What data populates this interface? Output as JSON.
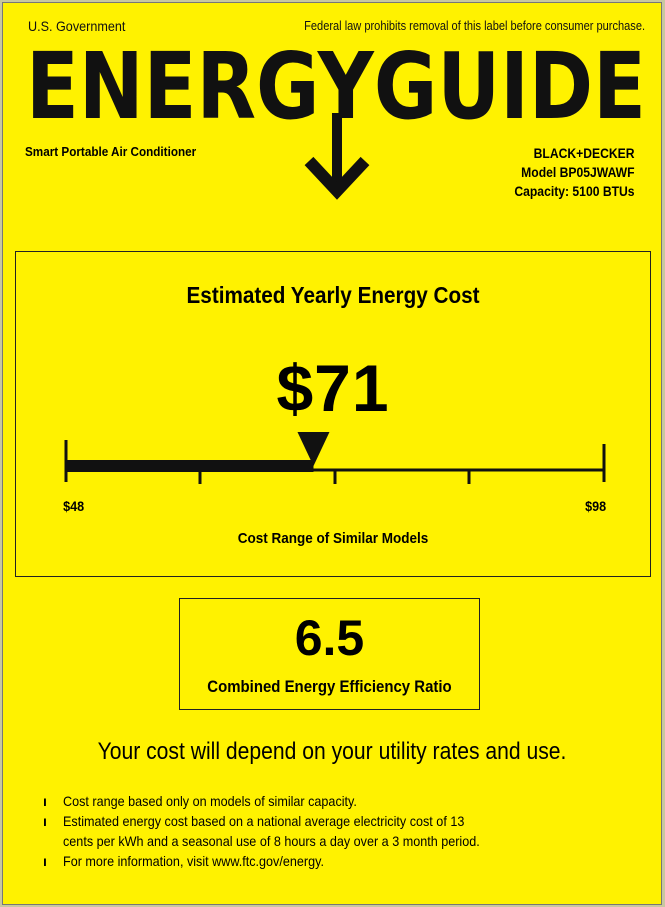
{
  "header": {
    "left": "U.S. Government",
    "right": "Federal law prohibits removal of this label before consumer purchase.",
    "logo_text": "ENERGYGUIDE"
  },
  "product": {
    "type": "Smart Portable Air Conditioner",
    "brand": "BLACK+DECKER",
    "model": "Model BP05JWAWF",
    "capacity": "Capacity: 5100 BTUs"
  },
  "cost": {
    "title": "Estimated Yearly Energy Cost",
    "value": "$71",
    "amount": 71,
    "min": 48,
    "max": 98,
    "min_label": "$48",
    "max_label": "$98",
    "range_label": "Cost Range of Similar Models"
  },
  "efficiency": {
    "value": "6.5",
    "label": "Combined Energy Efficiency Ratio"
  },
  "note": "Your cost will depend on your utility rates and use.",
  "bullets": [
    "Cost range based only on models of similar capacity.",
    "Estimated energy cost based on a national average electricity cost of 13",
    "cents per kWh and a seasonal use of 8 hours a day over a 3 month period.",
    "For more information, visit www.ftc.gov/energy."
  ],
  "bullet_marker": "ı",
  "colors": {
    "background": "#fff200",
    "ink": "#111111"
  }
}
